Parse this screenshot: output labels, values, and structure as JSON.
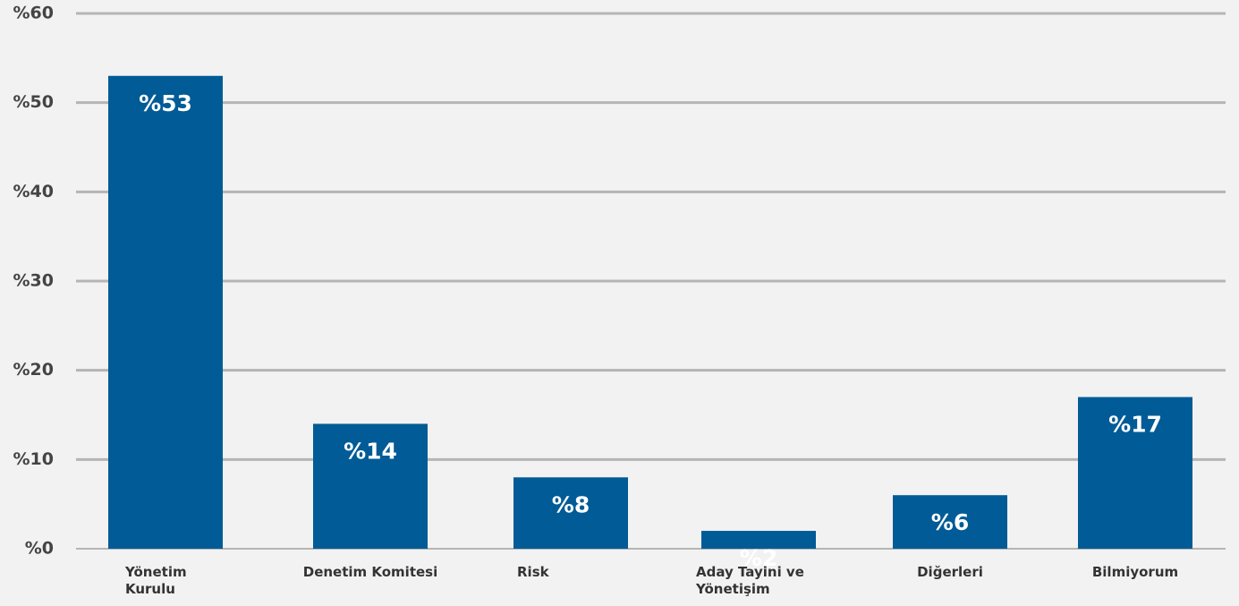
{
  "chart_data": {
    "type": "bar",
    "categories": [
      "Yönetim Kurulu",
      "Denetim Komitesi",
      "Risk",
      "Aday Tayini ve Yönetişim",
      "Diğerleri",
      "Bilmiyorum"
    ],
    "values": [
      53,
      14,
      8,
      2,
      6,
      17
    ],
    "value_labels": [
      "%53",
      "%14",
      "%8",
      "%2",
      "%6",
      "%17"
    ],
    "color": "#005b96",
    "ylim": [
      0,
      60
    ],
    "yticks": [
      {
        "value": 0,
        "label": "%0"
      },
      {
        "value": 10,
        "label": "%10"
      },
      {
        "value": 20,
        "label": "%20"
      },
      {
        "value": 30,
        "label": "%30"
      },
      {
        "value": 40,
        "label": "%40"
      },
      {
        "value": 50,
        "label": "%50"
      },
      {
        "value": 60,
        "label": "%60"
      }
    ],
    "grid": true
  }
}
